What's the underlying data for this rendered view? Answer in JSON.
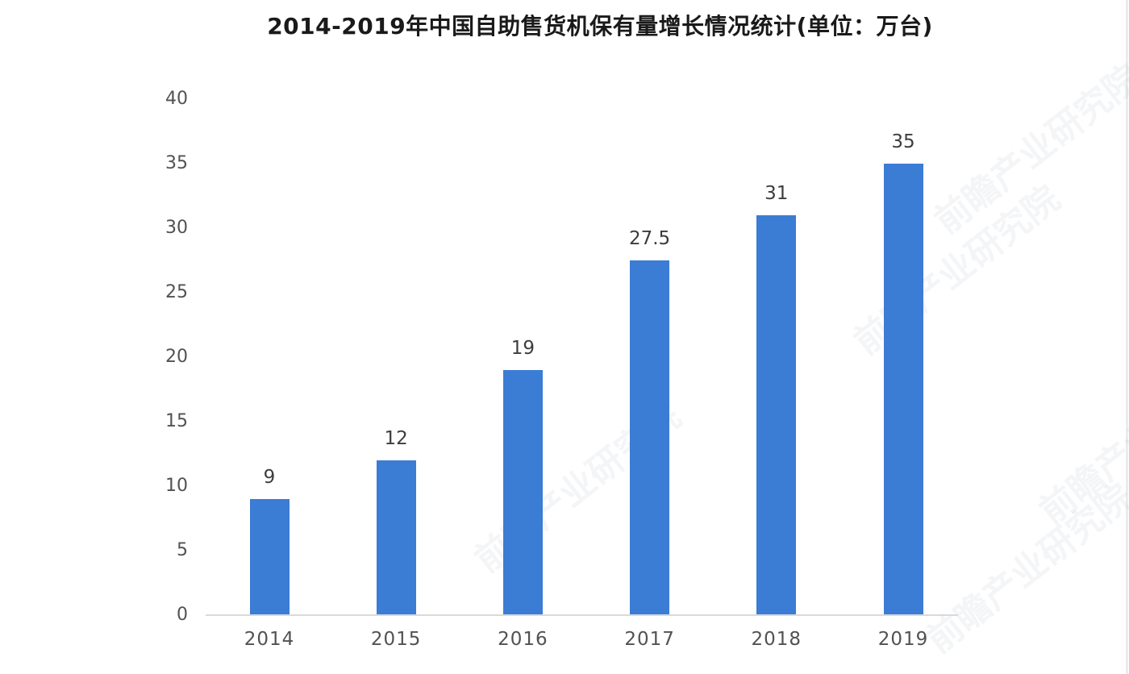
{
  "chart_data": {
    "type": "bar",
    "title": "2014-2019年中国自助售货机保有量增长情况统计(单位：万台)",
    "categories": [
      "2014",
      "2015",
      "2016",
      "2017",
      "2018",
      "2019"
    ],
    "values": [
      9,
      12,
      19,
      27.5,
      31,
      35
    ],
    "value_labels": [
      "9",
      "12",
      "19",
      "27.5",
      "31",
      "35"
    ],
    "xlabel": "",
    "ylabel": "",
    "ylim": [
      0,
      40
    ],
    "yticks": [
      0,
      5,
      10,
      15,
      20,
      25,
      30,
      35,
      40
    ],
    "grid": "off",
    "legend": "none",
    "bar_color": "#3b7cd5",
    "axis_line_color": "#d9d9d9",
    "title_color": "#1a1a1a",
    "tick_label_color": "#525252",
    "value_label_color": "#3d3d3d"
  },
  "watermark": {
    "text": "前瞻产业研究院",
    "color": "#6b7a99"
  }
}
